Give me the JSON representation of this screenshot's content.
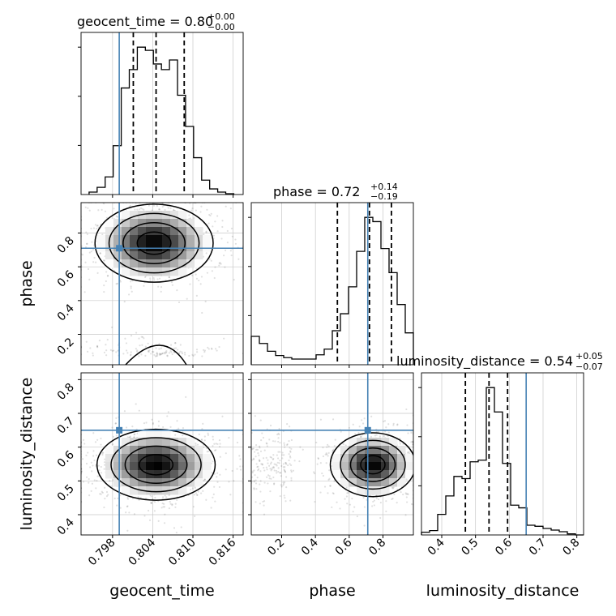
{
  "chart_data": {
    "type": "corner",
    "parameters": [
      {
        "name": "geocent_time",
        "label": "geocent_time",
        "true_value": 0.799,
        "title": {
          "prefix": "geocent_time = 0.80",
          "plus": "+0.00",
          "minus": "−0.00"
        },
        "ticks": [
          0.798,
          0.804,
          0.81,
          0.816
        ],
        "tick_labels": [
          "0.798",
          "0.804",
          "0.810",
          "0.816"
        ],
        "range": [
          0.7933,
          0.8175
        ],
        "quantiles": [
          0.8011,
          0.8045,
          0.8087
        ]
      },
      {
        "name": "phase",
        "label": "phase",
        "true_value": 0.71,
        "title": {
          "prefix": "phase = 0.72",
          "plus": "+0.14",
          "minus": "−0.19"
        },
        "ticks": [
          0.2,
          0.4,
          0.6,
          0.8
        ],
        "tick_labels": [
          "0.2",
          "0.4",
          "0.6",
          "0.8"
        ],
        "range": [
          0.02,
          0.98
        ],
        "quantiles": [
          0.53,
          0.72,
          0.85
        ]
      },
      {
        "name": "luminosity_distance",
        "label": "luminosity_distance",
        "true_value": 0.65,
        "title": {
          "prefix": "luminosity_distance = 0.54",
          "plus": "+0.05",
          "minus": "−0.07"
        },
        "ticks": [
          0.4,
          0.5,
          0.6,
          0.7,
          0.8
        ],
        "tick_labels": [
          "0.4",
          "0.5",
          "0.6",
          "0.7",
          "0.8"
        ],
        "range": [
          0.34,
          0.82
        ],
        "quantiles": [
          0.47,
          0.54,
          0.595
        ]
      }
    ],
    "histograms": [
      {
        "param": "geocent_time",
        "bin_edges": [
          0.7945,
          0.7957,
          0.7969,
          0.7981,
          0.7993,
          0.8005,
          0.8017,
          0.8029,
          0.8041,
          0.8053,
          0.8065,
          0.8077,
          0.8089,
          0.8101,
          0.8113,
          0.8125,
          0.8137,
          0.8149,
          0.8161
        ],
        "counts": [
          3,
          9,
          22,
          61,
          133,
          156,
          184,
          180,
          163,
          156,
          168,
          124,
          85,
          46,
          18,
          7,
          3,
          1
        ]
      },
      {
        "param": "phase",
        "bin_edges": [
          0.02,
          0.068,
          0.116,
          0.164,
          0.212,
          0.26,
          0.308,
          0.356,
          0.404,
          0.452,
          0.5,
          0.548,
          0.596,
          0.644,
          0.692,
          0.74,
          0.788,
          0.836,
          0.884,
          0.932,
          0.98
        ],
        "counts": [
          40,
          30,
          19,
          13,
          10,
          8,
          8,
          8,
          14,
          22,
          48,
          72,
          110,
          160,
          208,
          202,
          164,
          130,
          85,
          45
        ]
      },
      {
        "param": "luminosity_distance",
        "bin_edges": [
          0.34,
          0.364,
          0.388,
          0.412,
          0.436,
          0.46,
          0.484,
          0.508,
          0.532,
          0.556,
          0.58,
          0.604,
          0.628,
          0.652,
          0.676,
          0.7,
          0.724,
          0.748,
          0.772,
          0.796,
          0.82
        ],
        "counts": [
          5,
          8,
          38,
          72,
          108,
          104,
          135,
          138,
          272,
          227,
          132,
          55,
          50,
          18,
          16,
          12,
          9,
          6,
          2,
          0
        ]
      }
    ],
    "joint_modes": [
      {
        "x": "geocent_time",
        "y": "phase",
        "mode": [
          0.8042,
          0.74
        ],
        "spread": [
          0.0042,
          0.11
        ],
        "tail_low_phase": 0.07
      },
      {
        "x": "geocent_time",
        "y": "luminosity_distance",
        "mode": [
          0.8045,
          0.548
        ],
        "spread": [
          0.0042,
          0.05
        ]
      },
      {
        "x": "phase",
        "y": "luminosity_distance",
        "mode": [
          0.74,
          0.548
        ],
        "spread": [
          0.12,
          0.045
        ]
      }
    ],
    "axis_labels": {
      "x": [
        "geocent_time",
        "phase",
        "luminosity_distance"
      ],
      "y": [
        "",
        "phase",
        "luminosity_distance"
      ]
    },
    "truth_color": "#4682b4",
    "grid": true
  }
}
